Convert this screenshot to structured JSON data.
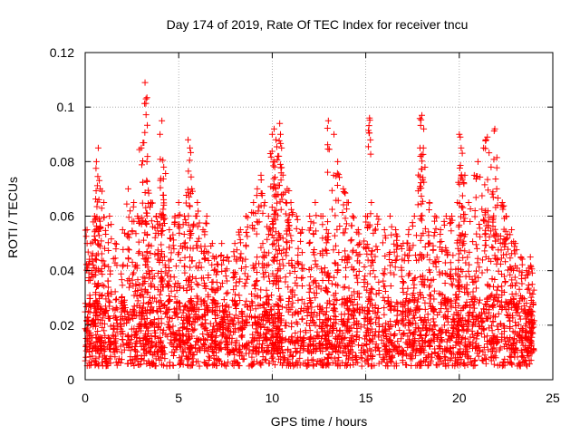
{
  "chart_data": {
    "type": "scatter",
    "title": "Day 174 of 2019, Rate Of TEC Index for receiver tncu",
    "xlabel": "GPS time / hours",
    "ylabel": "ROTI / TECUs",
    "xlim": [
      0,
      25
    ],
    "ylim": [
      0,
      0.12
    ],
    "xticks": [
      0,
      5,
      10,
      15,
      20,
      25
    ],
    "xtick_labels": [
      "0",
      "5",
      "10",
      "15",
      "20",
      "25"
    ],
    "yticks": [
      0,
      0.02,
      0.04,
      0.06,
      0.08,
      0.1,
      0.12
    ],
    "ytick_labels": [
      "0",
      "0.02",
      "0.04",
      "0.06",
      "0.08",
      "0.1",
      "0.12"
    ],
    "grid": true,
    "marker": "+",
    "color": "#ff0000",
    "series": [
      {
        "name": "ROTI",
        "background_band": {
          "x_range": [
            0,
            24
          ],
          "typical_y": [
            0.005,
            0.03
          ]
        },
        "x": [
          0.1,
          0.3,
          0.5,
          0.6,
          0.7,
          0.8,
          1.0,
          1.3,
          1.6,
          2.0,
          2.3,
          2.6,
          2.8,
          3.0,
          3.2,
          3.25,
          3.3,
          3.5,
          3.8,
          4.0,
          4.1,
          4.2,
          4.5,
          4.8,
          5.0,
          5.3,
          5.5,
          5.6,
          5.7,
          6.0,
          6.3,
          6.5,
          6.8,
          7.0,
          7.3,
          7.6,
          8.0,
          8.3,
          8.6,
          9.0,
          9.2,
          9.4,
          9.6,
          9.8,
          10.0,
          10.1,
          10.2,
          10.3,
          10.4,
          10.5,
          10.8,
          11.0,
          11.3,
          11.6,
          12.0,
          12.3,
          12.6,
          12.9,
          13.0,
          13.3,
          13.5,
          13.8,
          14.0,
          14.3,
          14.6,
          15.0,
          15.2,
          15.3,
          15.6,
          16.0,
          16.3,
          16.6,
          17.0,
          17.3,
          17.6,
          17.9,
          18.0,
          18.1,
          18.4,
          18.7,
          19.0,
          19.3,
          19.6,
          19.9,
          20.0,
          20.1,
          20.3,
          20.5,
          20.8,
          21.0,
          21.3,
          21.5,
          21.7,
          21.9,
          22.0,
          22.3,
          22.5,
          22.8,
          23.0,
          23.3,
          23.6,
          23.8,
          23.9
        ],
        "y": [
          0.055,
          0.05,
          0.06,
          0.08,
          0.085,
          0.07,
          0.065,
          0.06,
          0.05,
          0.055,
          0.07,
          0.065,
          0.06,
          0.085,
          0.109,
          0.103,
          0.08,
          0.065,
          0.06,
          0.09,
          0.095,
          0.078,
          0.055,
          0.06,
          0.065,
          0.06,
          0.088,
          0.085,
          0.07,
          0.065,
          0.055,
          0.06,
          0.05,
          0.045,
          0.05,
          0.045,
          0.05,
          0.055,
          0.06,
          0.065,
          0.07,
          0.075,
          0.065,
          0.06,
          0.09,
          0.092,
          0.088,
          0.082,
          0.094,
          0.085,
          0.07,
          0.065,
          0.06,
          0.055,
          0.06,
          0.065,
          0.06,
          0.055,
          0.095,
          0.09,
          0.08,
          0.07,
          0.065,
          0.06,
          0.055,
          0.06,
          0.096,
          0.065,
          0.06,
          0.055,
          0.06,
          0.055,
          0.05,
          0.055,
          0.06,
          0.085,
          0.097,
          0.092,
          0.065,
          0.06,
          0.055,
          0.06,
          0.06,
          0.065,
          0.09,
          0.085,
          0.075,
          0.065,
          0.075,
          0.08,
          0.085,
          0.089,
          0.078,
          0.092,
          0.07,
          0.065,
          0.06,
          0.055,
          0.05,
          0.045,
          0.04,
          0.045,
          0.035
        ]
      }
    ]
  }
}
